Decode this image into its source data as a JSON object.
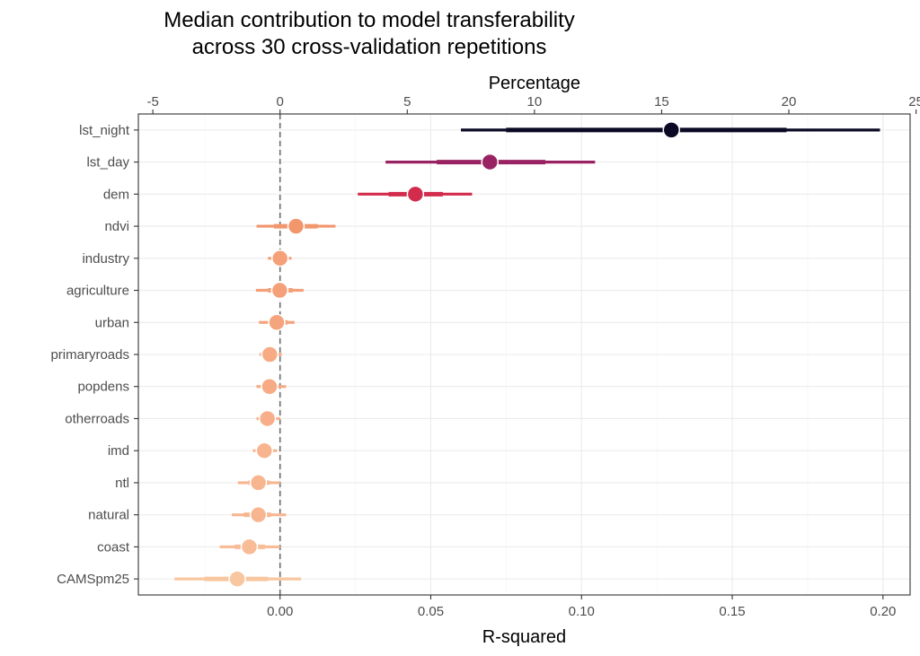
{
  "chart_data": {
    "type": "interval-dot",
    "title": "Median contribution to model transferability\nacross 30 cross-validation repetitions",
    "xlabel": "R-squared",
    "x2label": "Percentage",
    "xlim": [
      -0.047,
      0.209
    ],
    "x_ticks": [
      0.0,
      0.05,
      0.1,
      0.15,
      0.2
    ],
    "x_tick_labels": [
      "0.00",
      "0.05",
      "0.10",
      "0.15",
      "0.20"
    ],
    "x2_ticks": [
      -5,
      0,
      5,
      10,
      15,
      20,
      25
    ],
    "x2_tick_labels": [
      "-5",
      "0",
      "5",
      "10",
      "15",
      "20",
      "25"
    ],
    "percent_per_r2": 118.5,
    "reference_line": 0,
    "grid": true,
    "legend": "none",
    "categories": [
      "lst_night",
      "lst_day",
      "dem",
      "ndvi",
      "industry",
      "agriculture",
      "urban",
      "primaryroads",
      "popdens",
      "otherroads",
      "imd",
      "ntl",
      "natural",
      "coast",
      "CAMSpm25"
    ],
    "series": [
      {
        "category": "lst_night",
        "median": 0.1298,
        "outer": [
          0.06,
          0.199
        ],
        "inner": [
          0.075,
          0.168
        ],
        "color": "#0b0924"
      },
      {
        "category": "lst_day",
        "median": 0.0696,
        "outer": [
          0.035,
          0.1045
        ],
        "inner": [
          0.052,
          0.088
        ],
        "color": "#992262"
      },
      {
        "category": "dem",
        "median": 0.0449,
        "outer": [
          0.0258,
          0.0637
        ],
        "inner": [
          0.036,
          0.054
        ],
        "color": "#d22b4c"
      },
      {
        "category": "ndvi",
        "median": 0.0053,
        "outer": [
          -0.0078,
          0.0184
        ],
        "inner": [
          -0.002,
          0.0125
        ],
        "color": "#f2966c"
      },
      {
        "category": "industry",
        "median": 0.0,
        "outer": [
          -0.004,
          0.0038
        ],
        "inner": [
          -0.0022,
          0.0022
        ],
        "color": "#f4a078"
      },
      {
        "category": "agriculture",
        "median": -0.0001,
        "outer": [
          -0.008,
          0.0078
        ],
        "inner": [
          -0.004,
          0.0042
        ],
        "color": "#f4a078"
      },
      {
        "category": "urban",
        "median": -0.0011,
        "outer": [
          -0.007,
          0.0048
        ],
        "inner": [
          -0.0035,
          0.0025
        ],
        "color": "#f5a57e"
      },
      {
        "category": "primaryroads",
        "median": -0.0034,
        "outer": [
          -0.0068,
          0.0006
        ],
        "inner": [
          -0.0055,
          -0.001
        ],
        "color": "#f6ab84"
      },
      {
        "category": "popdens",
        "median": -0.0035,
        "outer": [
          -0.0078,
          0.002
        ],
        "inner": [
          -0.006,
          -0.0005
        ],
        "color": "#f6ab84"
      },
      {
        "category": "otherroads",
        "median": -0.0042,
        "outer": [
          -0.0078,
          0.0
        ],
        "inner": [
          -0.0062,
          -0.0018
        ],
        "color": "#f6af8a"
      },
      {
        "category": "imd",
        "median": -0.0052,
        "outer": [
          -0.009,
          -0.001
        ],
        "inner": [
          -0.0072,
          -0.0028
        ],
        "color": "#f7b48f"
      },
      {
        "category": "ntl",
        "median": -0.0072,
        "outer": [
          -0.014,
          0.0
        ],
        "inner": [
          -0.0105,
          -0.0035
        ],
        "color": "#f7b690"
      },
      {
        "category": "natural",
        "median": -0.0072,
        "outer": [
          -0.016,
          0.002
        ],
        "inner": [
          -0.012,
          -0.003
        ],
        "color": "#f7b690"
      },
      {
        "category": "coast",
        "median": -0.0102,
        "outer": [
          -0.02,
          0.0
        ],
        "inner": [
          -0.015,
          -0.005
        ],
        "color": "#f8bc97"
      },
      {
        "category": "CAMSpm25",
        "median": -0.0142,
        "outer": [
          -0.035,
          0.007
        ],
        "inner": [
          -0.025,
          -0.004
        ],
        "color": "#f8c69f"
      }
    ]
  }
}
